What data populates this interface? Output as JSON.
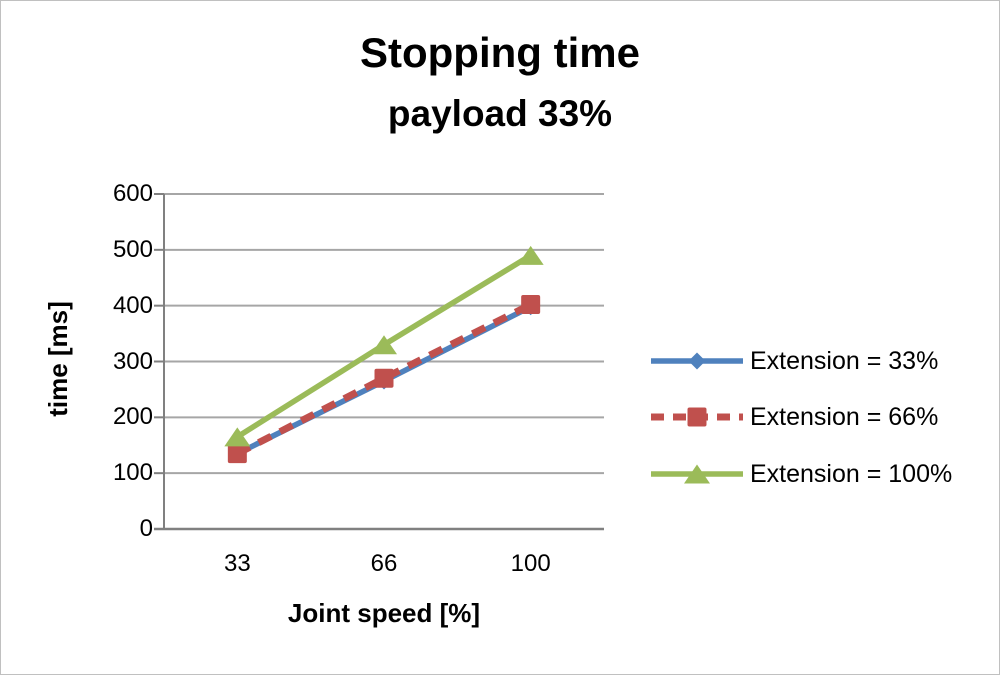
{
  "chart_data": {
    "type": "line",
    "title": "Stopping time",
    "subtitle": "payload 33%",
    "xlabel": "Joint speed [%]",
    "ylabel": "time [ms]",
    "categories": [
      "33",
      "66",
      "100"
    ],
    "ylim": [
      0,
      600
    ],
    "yticks": [
      0,
      100,
      200,
      300,
      400,
      500,
      600
    ],
    "grid": true,
    "legend_position": "right",
    "series": [
      {
        "name": "Extension = 33%",
        "values": [
          135,
          265,
          398
        ],
        "color": "#4F81BD",
        "marker": "diamond",
        "dash": "solid"
      },
      {
        "name": "Extension = 66%",
        "values": [
          135,
          270,
          402
        ],
        "color": "#C0504D",
        "marker": "square",
        "dash": "dashed"
      },
      {
        "name": "Extension = 100%",
        "values": [
          165,
          330,
          490
        ],
        "color": "#9BBB59",
        "marker": "triangle",
        "dash": "solid"
      }
    ]
  },
  "colors": {
    "grid": "#a6a6a6",
    "axis": "#808080",
    "text": "#000000",
    "border": "#c0c0c0",
    "background": "#ffffff"
  }
}
